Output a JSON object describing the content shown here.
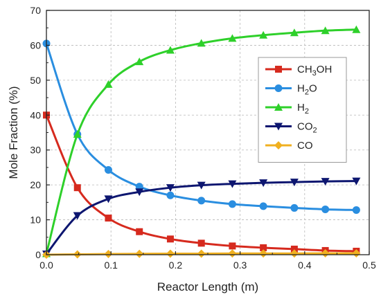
{
  "chart_data": {
    "type": "line",
    "xlabel": "Reactor Length (m)",
    "ylabel": "Mole Fraction (%)",
    "xlim": [
      0.0,
      0.5
    ],
    "ylim": [
      0,
      70
    ],
    "x_ticks": [
      "0.0",
      "0.1",
      "0.2",
      "0.3",
      "0.4",
      "0.5"
    ],
    "y_ticks": [
      "0",
      "10",
      "20",
      "30",
      "40",
      "50",
      "60",
      "70"
    ],
    "grid": true,
    "legend_position": "right",
    "series": [
      {
        "name": "CH3OH",
        "label_main": "CH",
        "label_sub1": "3",
        "label_rest": "OH",
        "label_sub2": "",
        "color": "#d62a1e",
        "marker": "square",
        "x": [
          0.0,
          0.048,
          0.096,
          0.144,
          0.192,
          0.24,
          0.288,
          0.336,
          0.384,
          0.432,
          0.48
        ],
        "y": [
          40.0,
          19.2,
          10.5,
          6.6,
          4.5,
          3.3,
          2.5,
          2.0,
          1.6,
          1.2,
          1.0
        ]
      },
      {
        "name": "H2O",
        "label_main": "H",
        "label_sub1": "2",
        "label_rest": "O",
        "label_sub2": "",
        "color": "#2a8ee0",
        "marker": "circle",
        "x": [
          0.0,
          0.048,
          0.096,
          0.144,
          0.192,
          0.24,
          0.288,
          0.336,
          0.384,
          0.432,
          0.48
        ],
        "y": [
          60.5,
          34.5,
          24.3,
          19.5,
          17.0,
          15.5,
          14.5,
          13.9,
          13.4,
          13.0,
          12.8
        ]
      },
      {
        "name": "H2",
        "label_main": "H",
        "label_sub1": "2",
        "label_rest": "",
        "label_sub2": "",
        "color": "#2ed02a",
        "marker": "triangle-up",
        "x": [
          0.0,
          0.048,
          0.096,
          0.144,
          0.192,
          0.24,
          0.288,
          0.336,
          0.384,
          0.432,
          0.48
        ],
        "y": [
          0.3,
          34.5,
          48.8,
          55.3,
          58.6,
          60.6,
          62.0,
          62.9,
          63.6,
          64.2,
          64.5
        ]
      },
      {
        "name": "CO2",
        "label_main": "CO",
        "label_sub1": "2",
        "label_rest": "",
        "label_sub2": "",
        "color": "#0d1670",
        "marker": "triangle-down",
        "x": [
          0.0,
          0.048,
          0.096,
          0.144,
          0.192,
          0.24,
          0.288,
          0.336,
          0.384,
          0.432,
          0.48
        ],
        "y": [
          0.2,
          11.2,
          16.0,
          18.0,
          19.2,
          19.9,
          20.3,
          20.6,
          20.8,
          21.0,
          21.1
        ]
      },
      {
        "name": "CO",
        "label_main": "CO",
        "label_sub1": "",
        "label_rest": "",
        "label_sub2": "",
        "color": "#f0b020",
        "marker": "diamond",
        "x": [
          0.0,
          0.048,
          0.096,
          0.144,
          0.192,
          0.24,
          0.288,
          0.336,
          0.384,
          0.432,
          0.48
        ],
        "y": [
          0.0,
          0.1,
          0.2,
          0.25,
          0.3,
          0.3,
          0.35,
          0.35,
          0.35,
          0.4,
          0.4
        ]
      }
    ]
  }
}
